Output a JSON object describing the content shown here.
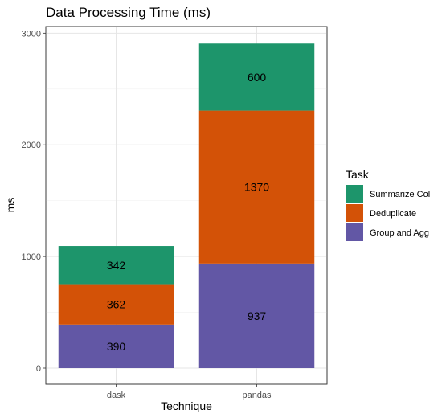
{
  "chart_data": {
    "type": "bar",
    "stacked": true,
    "title": "Data Processing Time (ms)",
    "xlabel": "Technique",
    "ylabel": "ms",
    "categories": [
      "dask",
      "pandas"
    ],
    "ylim": [
      0,
      3050
    ],
    "yticks": [
      0,
      1000,
      2000,
      3000
    ],
    "grid": true,
    "legend": {
      "title": "Task",
      "position": "right"
    },
    "series": [
      {
        "name": "Group and Agg",
        "values": [
          390,
          937
        ],
        "color": "#6257a5"
      },
      {
        "name": "Deduplicate",
        "values": [
          362,
          1370
        ],
        "color": "#d35207"
      },
      {
        "name": "Summarize Col",
        "values": [
          342,
          600
        ],
        "color": "#1d956b"
      }
    ],
    "legend_order": [
      "Summarize Col",
      "Deduplicate",
      "Group and Agg"
    ]
  }
}
